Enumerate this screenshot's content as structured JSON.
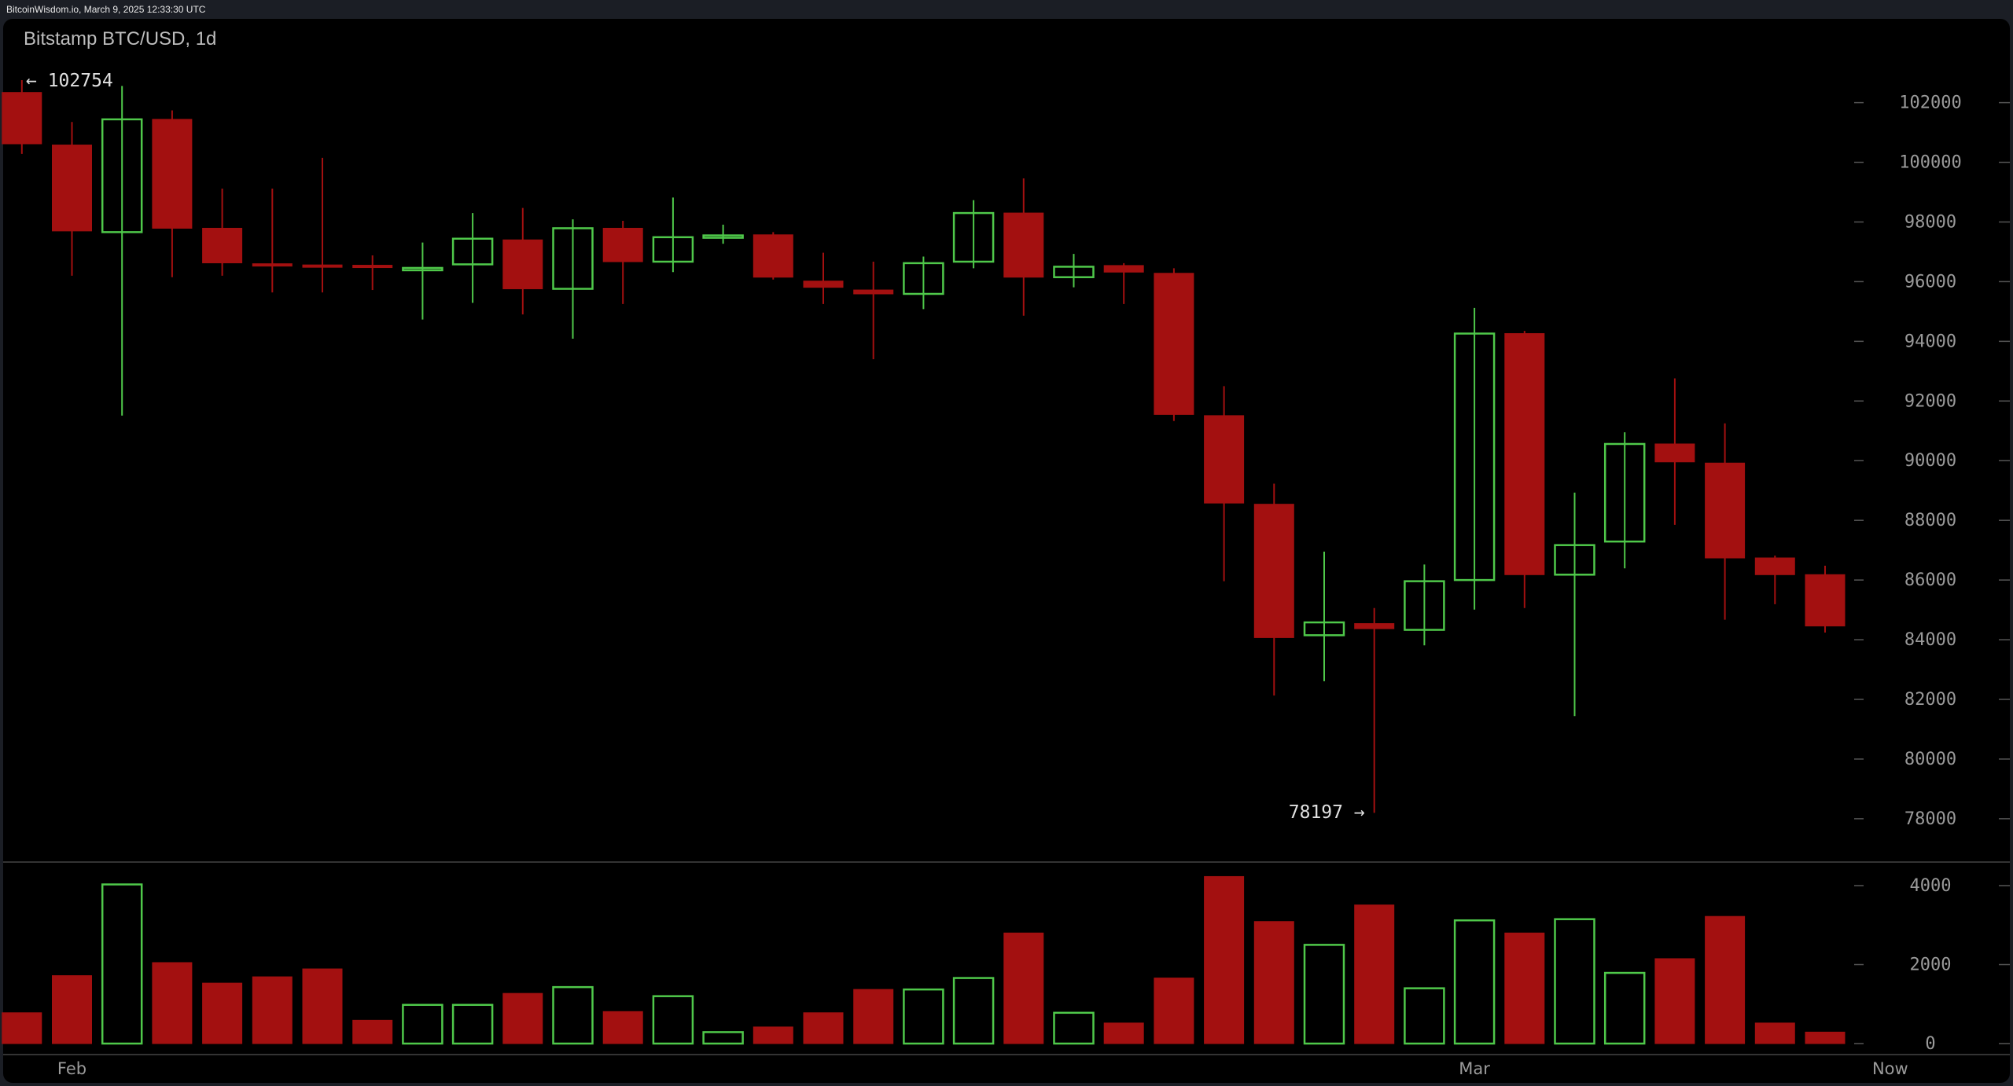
{
  "header": {
    "source_line": "BitcoinWisdom.io, March 9, 2025 12:33:30 UTC"
  },
  "chart_data": {
    "type": "candlestick",
    "title": "Bitstamp BTC/USD, 1d",
    "colors": {
      "up": "#4fc84a",
      "down": "#a31010",
      "background": "#000000",
      "axis_text": "#9a9a9a"
    },
    "price_axis": {
      "ylim": [
        77000,
        103000
      ],
      "ticks": [
        102000,
        100000,
        98000,
        96000,
        94000,
        92000,
        90000,
        88000,
        86000,
        84000,
        82000,
        80000,
        78000
      ]
    },
    "volume_axis": {
      "ylim": [
        0,
        4400
      ],
      "ticks": [
        4000,
        2000,
        0
      ]
    },
    "x_ticks": [
      {
        "label": "Feb",
        "index": 1
      },
      {
        "label": "Mar",
        "index": 29
      },
      {
        "label": "Now",
        "index": 37.3
      }
    ],
    "annotations": {
      "high_label": "← 102754",
      "low_label": "78197 →",
      "high_index": 0,
      "low_index": 27
    },
    "candles": [
      {
        "o": 102340,
        "h": 102754,
        "l": 100280,
        "c": 100620,
        "v": 780
      },
      {
        "o": 100580,
        "h": 101350,
        "l": 96200,
        "c": 97700,
        "v": 1720
      },
      {
        "o": 97660,
        "h": 102560,
        "l": 91510,
        "c": 101440,
        "v": 4030
      },
      {
        "o": 101440,
        "h": 101740,
        "l": 96150,
        "c": 97790,
        "v": 2050
      },
      {
        "o": 97790,
        "h": 99120,
        "l": 96200,
        "c": 96630,
        "v": 1530
      },
      {
        "o": 96600,
        "h": 99120,
        "l": 95640,
        "c": 96560,
        "v": 1690
      },
      {
        "o": 96560,
        "h": 100150,
        "l": 95640,
        "c": 96530,
        "v": 1890
      },
      {
        "o": 96550,
        "h": 96880,
        "l": 95720,
        "c": 96530,
        "v": 590
      },
      {
        "o": 96430,
        "h": 97310,
        "l": 94730,
        "c": 96460,
        "v": 980
      },
      {
        "o": 96580,
        "h": 98300,
        "l": 95290,
        "c": 97440,
        "v": 980
      },
      {
        "o": 97400,
        "h": 98470,
        "l": 94900,
        "c": 95760,
        "v": 1270
      },
      {
        "o": 95760,
        "h": 98090,
        "l": 94090,
        "c": 97790,
        "v": 1430
      },
      {
        "o": 97790,
        "h": 98040,
        "l": 95250,
        "c": 96670,
        "v": 810
      },
      {
        "o": 96670,
        "h": 98820,
        "l": 96320,
        "c": 97490,
        "v": 1200
      },
      {
        "o": 97500,
        "h": 97910,
        "l": 97270,
        "c": 97550,
        "v": 290
      },
      {
        "o": 97570,
        "h": 97660,
        "l": 96070,
        "c": 96150,
        "v": 420
      },
      {
        "o": 96020,
        "h": 96970,
        "l": 95250,
        "c": 95810,
        "v": 780
      },
      {
        "o": 95720,
        "h": 96670,
        "l": 93400,
        "c": 95590,
        "v": 1370
      },
      {
        "o": 95590,
        "h": 96840,
        "l": 95080,
        "c": 96620,
        "v": 1370
      },
      {
        "o": 96670,
        "h": 98730,
        "l": 96450,
        "c": 98300,
        "v": 1660
      },
      {
        "o": 98300,
        "h": 99460,
        "l": 94860,
        "c": 96150,
        "v": 2800
      },
      {
        "o": 96150,
        "h": 96930,
        "l": 95810,
        "c": 96500,
        "v": 780
      },
      {
        "o": 96540,
        "h": 96620,
        "l": 95250,
        "c": 96320,
        "v": 520
      },
      {
        "o": 96280,
        "h": 96450,
        "l": 91330,
        "c": 91550,
        "v": 1660
      },
      {
        "o": 91510,
        "h": 92500,
        "l": 85960,
        "c": 88580,
        "v": 4230
      },
      {
        "o": 88540,
        "h": 89230,
        "l": 82130,
        "c": 84070,
        "v": 3090
      },
      {
        "o": 84150,
        "h": 86950,
        "l": 82610,
        "c": 84580,
        "v": 2500
      },
      {
        "o": 84540,
        "h": 85060,
        "l": 78197,
        "c": 84370,
        "v": 3510
      },
      {
        "o": 84330,
        "h": 86520,
        "l": 83810,
        "c": 85960,
        "v": 1400
      },
      {
        "o": 86000,
        "h": 95120,
        "l": 85010,
        "c": 94260,
        "v": 3120
      },
      {
        "o": 94260,
        "h": 94350,
        "l": 85060,
        "c": 86180,
        "v": 2800
      },
      {
        "o": 86180,
        "h": 88930,
        "l": 81440,
        "c": 87170,
        "v": 3150
      },
      {
        "o": 87290,
        "h": 90950,
        "l": 86390,
        "c": 90560,
        "v": 1790
      },
      {
        "o": 90560,
        "h": 92760,
        "l": 87850,
        "c": 89960,
        "v": 2150
      },
      {
        "o": 89920,
        "h": 91250,
        "l": 84670,
        "c": 86740,
        "v": 3220
      },
      {
        "o": 86740,
        "h": 86820,
        "l": 85190,
        "c": 86180,
        "v": 520
      },
      {
        "o": 86180,
        "h": 86480,
        "l": 84240,
        "c": 84460,
        "v": 290
      }
    ]
  }
}
